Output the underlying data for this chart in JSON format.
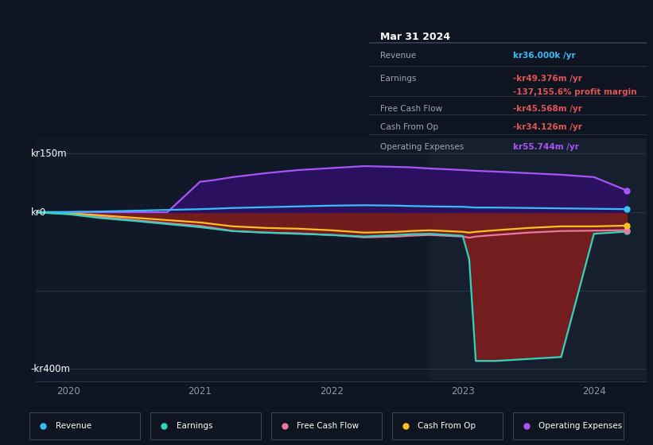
{
  "bg_color": "#0e1420",
  "plot_bg_color": "#111827",
  "grid_color": "#2a3a4a",
  "highlight_color": "#1a2535",
  "revenue_color": "#38bdf8",
  "earnings_color": "#2dd4bf",
  "fcf_color": "#e879a0",
  "cfop_color": "#fbbf24",
  "opex_color": "#a855f7",
  "earnings_fill_color": "#7f1d1d",
  "opex_fill_color": "#2e1065",
  "tooltip_bg": "#080c10",
  "tooltip_border": "#374151",
  "legend_bg": "#0e1420",
  "legend_border": "#374151",
  "x": [
    2019.75,
    2020.0,
    2020.25,
    2020.5,
    2020.75,
    2021.0,
    2021.1,
    2021.25,
    2021.5,
    2021.75,
    2022.0,
    2022.25,
    2022.5,
    2022.6,
    2022.75,
    2023.0,
    2023.05,
    2023.1,
    2023.25,
    2023.5,
    2023.75,
    2024.0,
    2024.25
  ],
  "revenue": [
    0.5,
    1,
    2,
    4,
    6,
    8,
    9,
    11,
    13,
    15,
    17,
    18,
    17,
    16,
    15,
    14,
    13,
    12,
    12,
    11,
    10,
    9,
    8
  ],
  "earnings": [
    0,
    -5,
    -15,
    -22,
    -30,
    -38,
    -42,
    -48,
    -52,
    -55,
    -58,
    -62,
    -58,
    -56,
    -55,
    -60,
    -120,
    -380,
    -380,
    -375,
    -370,
    -55,
    -49.376
  ],
  "fcf": [
    0,
    -4,
    -12,
    -20,
    -28,
    -35,
    -40,
    -48,
    -52,
    -54,
    -58,
    -64,
    -62,
    -60,
    -58,
    -62,
    -65,
    -62,
    -58,
    -52,
    -48,
    -47,
    -45.568
  ],
  "cfop": [
    0,
    -2,
    -8,
    -14,
    -20,
    -26,
    -30,
    -36,
    -40,
    -42,
    -46,
    -52,
    -50,
    -48,
    -46,
    -50,
    -52,
    -50,
    -46,
    -40,
    -36,
    -36,
    -34.126
  ],
  "opex": [
    0,
    0,
    0,
    0,
    0,
    78,
    82,
    90,
    100,
    108,
    113,
    118,
    116,
    115,
    112,
    108,
    107,
    106,
    104,
    100,
    96,
    90,
    55.744
  ],
  "xlim": [
    2019.75,
    2024.4
  ],
  "ylim": [
    -430,
    190
  ],
  "highlight_start": 2022.75,
  "highlight_end": 2024.4
}
